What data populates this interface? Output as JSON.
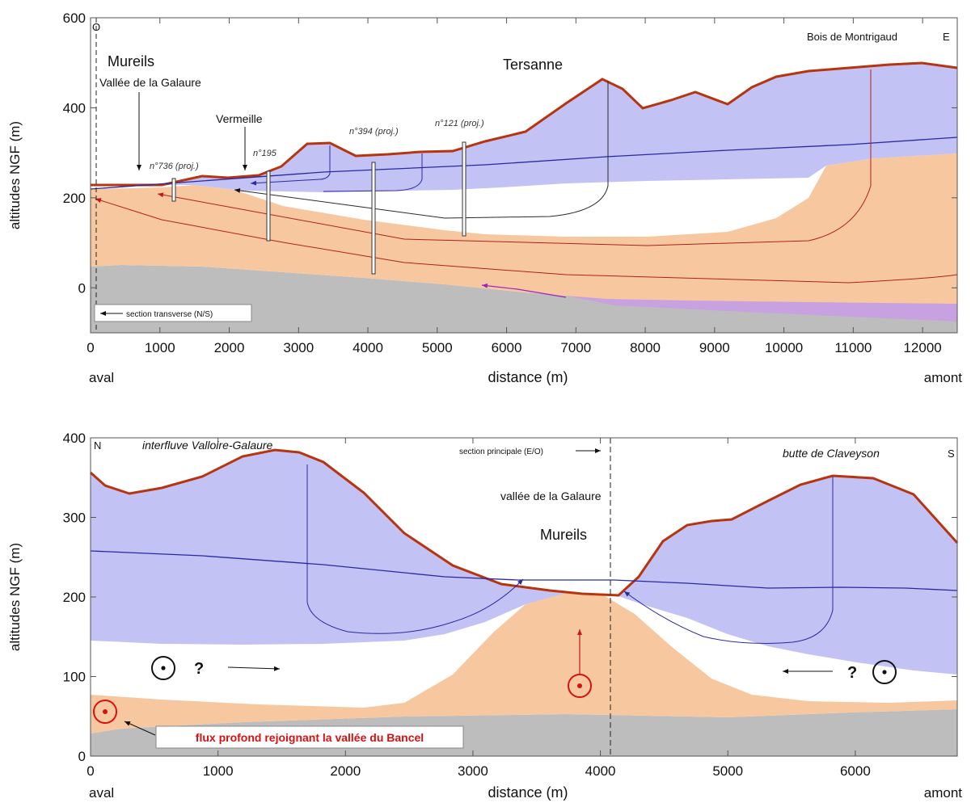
{
  "top": {
    "compass_left": "O",
    "compass_right": "E",
    "ylabel": "altitudes NGF (m)",
    "xlabel": "distance (m)",
    "x_left_label": "aval",
    "x_right_label": "amont",
    "xlim": [
      0,
      12500
    ],
    "ylim": [
      -100,
      600
    ],
    "x_ticks": [
      0,
      1000,
      2000,
      3000,
      4000,
      5000,
      6000,
      7000,
      8000,
      9000,
      10000,
      11000,
      12000
    ],
    "y_ticks": [
      0,
      200,
      400,
      600
    ],
    "place_labels": {
      "mureils": "Mureils",
      "galaure": "Vallée de la Galaure",
      "vermeille": "Vermeille",
      "tersanne": "Tersanne",
      "montrigaud": "Bois de Montrigaud"
    },
    "well_labels": {
      "w736": "n°736 (proj.)",
      "w195": "n°195",
      "w394": "n°394 (proj.)",
      "w121": "n°121 (proj.)"
    },
    "section_note": "section transverse (N/S)"
  },
  "bottom": {
    "compass_left": "N",
    "compass_right": "S",
    "ylabel": "altitudes NGF (m)",
    "xlabel": "distance (m)",
    "x_left_label": "aval",
    "x_right_label": "amont",
    "xlim": [
      0,
      6800
    ],
    "ylim": [
      0,
      400
    ],
    "x_ticks": [
      0,
      1000,
      2000,
      3000,
      4000,
      5000,
      6000
    ],
    "y_ticks": [
      0,
      100,
      200,
      300,
      400
    ],
    "place_labels": {
      "interfluve": "interfluve Valloire-Galaure",
      "claveyson": "butte de Claveyson",
      "galaure": "vallée de la Galaure",
      "mureils": "Mureils"
    },
    "section_note": "section principale (E/O)",
    "question_left": "?",
    "question_right": "?",
    "flux_note": "flux profond rejoignant la vallée du Bancel"
  },
  "colors": {
    "aquifer_upper": "#c2c2f5",
    "aquifer_middle": "#f7c8a0",
    "substratum": "#bdbdbd",
    "deep_flow_zone": "#c8a2e0",
    "ground_surface": "#b8340f",
    "water_table": "#2a2aa0",
    "deep_flowline": "#b02020",
    "flowline_dark": "#2a2a2a",
    "annotation_red": "#d81010"
  }
}
